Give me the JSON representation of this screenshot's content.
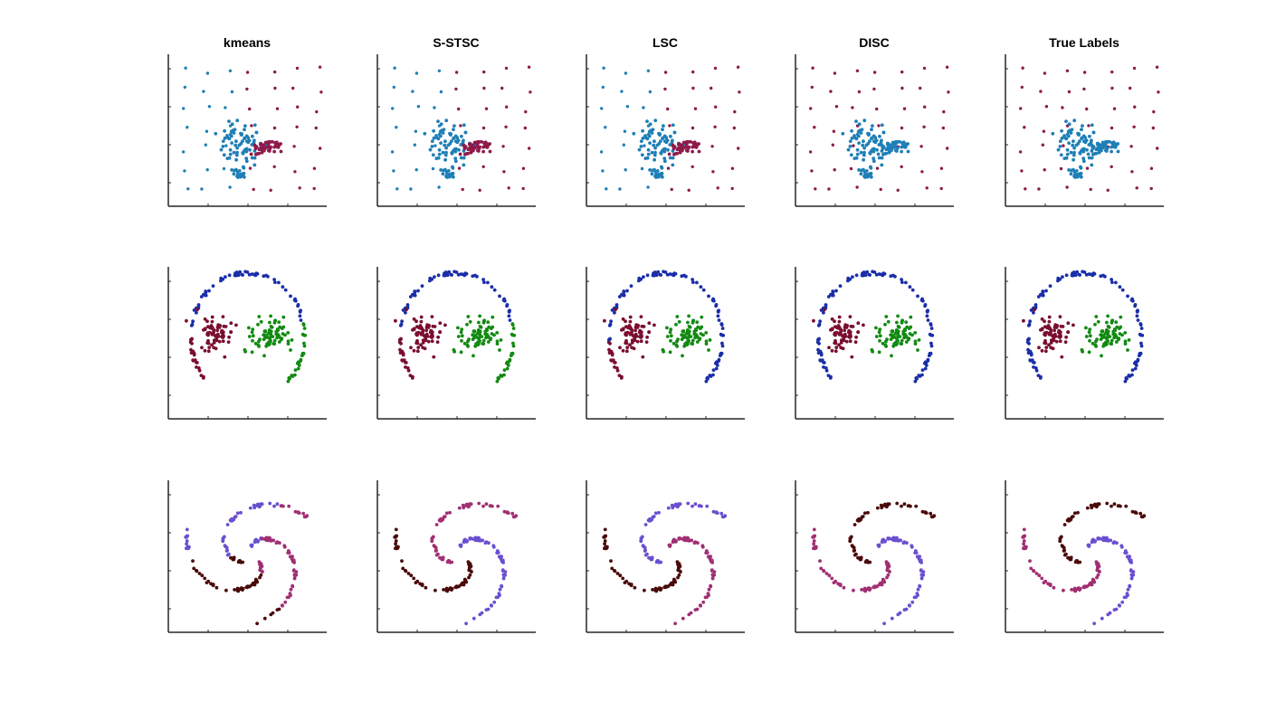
{
  "figure": {
    "background": "#ffffff",
    "column_titles": [
      "kmeans",
      "S-STSC",
      "LSC",
      "DISC",
      "True Labels"
    ],
    "axes_style": "left and bottom axis lines only, no tick labels, no grid"
  },
  "palette": {
    "dataset1": {
      "blue": "#1f7fb6",
      "red": "#8e1a4b"
    },
    "dataset2": {
      "navy": "#1a2ea8",
      "maroon": "#7a0e2e",
      "green": "#128a12"
    },
    "dataset3": {
      "violet": "#6a4fd0",
      "magenta": "#a02f73",
      "darkbrown": "#4a0a0a"
    }
  },
  "chart_data": [
    {
      "type": "scatter",
      "row": 1,
      "dataset": "uniform grid + curved dense blob",
      "xlim": [
        0,
        1
      ],
      "ylim": [
        0,
        1
      ],
      "grid": false,
      "panels": [
        {
          "title": "kmeans",
          "assignment": "left half of the field and most of the blob blue; right half of the field and the right arm of the blob red"
        },
        {
          "title": "S-STSC",
          "assignment": "left half blue including blob stem; right half and blob arm red"
        },
        {
          "title": "LSC",
          "assignment": "left half blue including blob stem; right half and blob arm red"
        },
        {
          "title": "DISC",
          "assignment": "entire dense blob blue; all background grid points red"
        },
        {
          "title": "True Labels",
          "assignment": "entire dense blob blue; all background grid points red"
        }
      ]
    },
    {
      "type": "scatter",
      "row": 2,
      "dataset": "ring with two inner clusters",
      "xlim": [
        0,
        1
      ],
      "ylim": [
        0,
        1
      ],
      "grid": false,
      "panels": [
        {
          "title": "kmeans",
          "assignment": "top of ring navy; left cluster + left side of ring maroon; right cluster + right side of ring green"
        },
        {
          "title": "S-STSC",
          "assignment": "top of ring navy; left cluster + left side of ring maroon; right cluster + right side of ring green"
        },
        {
          "title": "LSC",
          "assignment": "top and right side of ring navy; left cluster + left lower ring maroon; right cluster green"
        },
        {
          "title": "DISC",
          "assignment": "whole ring navy; left cluster maroon; right cluster green"
        },
        {
          "title": "True Labels",
          "assignment": "whole ring navy; left cluster maroon; right cluster green"
        }
      ]
    },
    {
      "type": "scatter",
      "row": 3,
      "dataset": "three interleaved spirals",
      "xlim": [
        0,
        1
      ],
      "ylim": [
        0,
        1
      ],
      "grid": false,
      "panels": [
        {
          "title": "kmeans",
          "assignment": "clusters split by angular sector, mixing spiral arms"
        },
        {
          "title": "S-STSC",
          "assignment": "three spiral arms labelled darkbrown, magenta, violet"
        },
        {
          "title": "LSC",
          "assignment": "three spiral arms labelled darkbrown, violet, magenta"
        },
        {
          "title": "DISC",
          "assignment": "three spiral arms, each a single colour"
        },
        {
          "title": "True Labels",
          "assignment": "three spiral arms, each a single colour"
        }
      ]
    }
  ]
}
